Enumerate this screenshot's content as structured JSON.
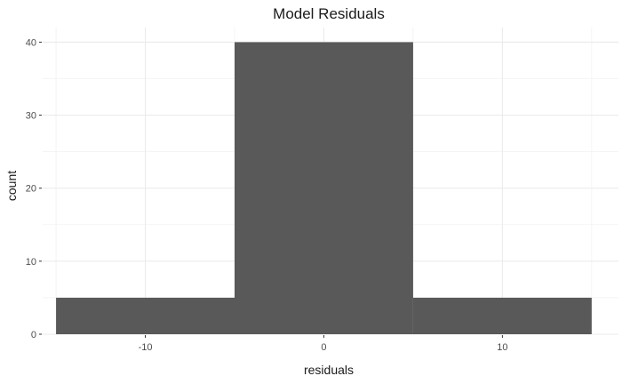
{
  "chart_data": {
    "type": "bar",
    "title": "Model Residuals",
    "xlabel": "residuals",
    "ylabel": "count",
    "bins": [
      {
        "x0": -15,
        "x1": -5,
        "count": 5
      },
      {
        "x0": -5,
        "x1": 5,
        "count": 40
      },
      {
        "x0": 5,
        "x1": 15,
        "count": 5
      }
    ],
    "x_ticks": [
      -10,
      0,
      10
    ],
    "x_tick_labels": [
      "-10",
      "0",
      "10"
    ],
    "y_ticks": [
      0,
      10,
      20,
      30,
      40
    ],
    "y_tick_labels": [
      "0",
      "10",
      "20",
      "30",
      "40"
    ],
    "xlim": [
      -15.75,
      16.5
    ],
    "ylim": [
      0,
      42
    ],
    "grid": true,
    "bar_color": "#595959"
  }
}
